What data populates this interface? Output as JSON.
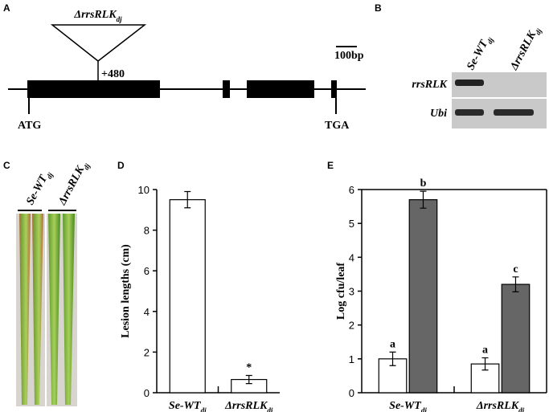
{
  "panel_labels": [
    "A",
    "B",
    "C",
    "D",
    "E"
  ],
  "gene_map": {
    "insertion": "ΔrrsRLK",
    "insertion_sub": "dj",
    "position": "+480",
    "scale_bar": "100bp",
    "start": "ATG",
    "stop": "TGA"
  },
  "gel": {
    "lanes": [
      {
        "text": "Se-WT",
        "sub": "dj"
      },
      {
        "text": "ΔrrsRLK",
        "sub": "dj"
      }
    ],
    "rows": [
      "rrsRLK",
      "Ubi"
    ]
  },
  "leaves": {
    "lanes": [
      {
        "text": "Se-WT",
        "sub": "dj"
      },
      {
        "text": "ΔrrsRLK",
        "sub": "dj"
      }
    ]
  },
  "chart_data": [
    {
      "type": "bar",
      "ylabel": "Lesion lengths (cm)",
      "categories": [
        "Se-WT",
        "ΔrrsRLK"
      ],
      "category_subs": [
        "dj",
        "dj"
      ],
      "series": [
        {
          "color": "#ffffff",
          "values": [
            9.5,
            0.65
          ],
          "errors": [
            0.4,
            0.2
          ],
          "labels": [
            null,
            "*"
          ]
        }
      ],
      "ylim": [
        0,
        10
      ],
      "yticks": [
        0,
        2,
        4,
        6,
        8,
        10
      ],
      "box": false
    },
    {
      "type": "bar",
      "ylabel": "Log cfu/leaf",
      "categories": [
        "Se-WT",
        "ΔrrsRLK"
      ],
      "category_subs": [
        "dj",
        "dj"
      ],
      "series": [
        {
          "color": "#ffffff",
          "values": [
            1.0,
            0.85
          ],
          "errors": [
            0.2,
            0.18
          ],
          "labels": [
            "a",
            "a"
          ]
        },
        {
          "color": "#666666",
          "values": [
            5.7,
            3.2
          ],
          "errors": [
            0.25,
            0.22
          ],
          "labels": [
            "b",
            "c"
          ]
        }
      ],
      "ylim": [
        0,
        6
      ],
      "yticks": [
        0,
        1,
        2,
        3,
        4,
        5,
        6
      ],
      "box": true
    }
  ]
}
